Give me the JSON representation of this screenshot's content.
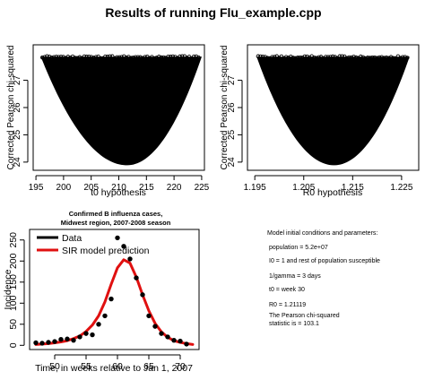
{
  "title": "Results of running Flu_example.cpp",
  "chart_data": [
    {
      "type": "scatter",
      "xlabel": "t0 hypothesis",
      "ylabel": "Corrected Pearson chi-squared",
      "xlim": [
        194.5,
        225.5
      ],
      "ylim": [
        23.7,
        28.3
      ],
      "xticks": [
        195,
        200,
        205,
        210,
        215,
        220,
        225
      ],
      "yticks": [
        24,
        25,
        26,
        27
      ],
      "shape": "parabola",
      "vertex": {
        "x": 211.5,
        "y": 23.9
      },
      "top_y": 27.85,
      "x_at_top": [
        196.0,
        224.9
      ],
      "color": "#000000"
    },
    {
      "type": "scatter",
      "xlabel": "R0 hypothesis",
      "ylabel": "Corrected Pearson chi-squared",
      "xlim": [
        1.1935,
        1.2285
      ],
      "ylim": [
        23.7,
        28.3
      ],
      "xticks": [
        1.195,
        1.205,
        1.215,
        1.225
      ],
      "xtick_labels": [
        "1.195",
        "1.205",
        "1.215",
        "1.225"
      ],
      "yticks": [
        24,
        25,
        26,
        27
      ],
      "shape": "parabola",
      "vertex": {
        "x": 1.2112,
        "y": 23.9
      },
      "top_y": 27.85,
      "x_at_top": [
        1.1955,
        1.2265
      ],
      "color": "#000000"
    },
    {
      "type": "line",
      "title": "Confirmed B influenza cases,\nMidwest region, 2007-2008 season",
      "title_lines": [
        "Confirmed B influenza cases,",
        "Midwest region, 2007-2008 season"
      ],
      "xlabel": "Time, in weeks relative to Jan 1, 2007",
      "ylabel": "Incidence",
      "xlim": [
        46,
        73
      ],
      "ylim": [
        -10,
        275
      ],
      "xticks": [
        50,
        55,
        60,
        65,
        70
      ],
      "yticks": [
        0,
        50,
        100,
        150,
        200,
        250
      ],
      "legend": {
        "placement": "top-left",
        "entries": [
          "Data",
          "SIR model prediction"
        ]
      },
      "series": [
        {
          "name": "Data",
          "style": "points",
          "color": "#000000",
          "x": [
            47,
            48,
            49,
            50,
            51,
            52,
            53,
            54,
            55,
            56,
            57,
            58,
            59,
            60,
            61,
            62,
            63,
            64,
            65,
            66,
            67,
            68,
            69,
            70,
            71
          ],
          "y": [
            6,
            5,
            7,
            9,
            14,
            15,
            12,
            20,
            28,
            25,
            50,
            70,
            110,
            255,
            235,
            205,
            160,
            120,
            70,
            45,
            28,
            20,
            12,
            10,
            3
          ]
        },
        {
          "name": "SIR model prediction",
          "style": "line",
          "color": "#e01010",
          "x": [
            47,
            48,
            49,
            50,
            51,
            52,
            53,
            54,
            55,
            56,
            57,
            58,
            59,
            60,
            61,
            62,
            63,
            64,
            65,
            66,
            67,
            68,
            69,
            70,
            71,
            72
          ],
          "y": [
            2,
            3,
            4,
            6,
            8,
            11,
            16,
            22,
            33,
            48,
            70,
            103,
            145,
            184,
            203,
            195,
            162,
            120,
            82,
            52,
            32,
            19,
            11,
            7,
            4,
            2
          ]
        }
      ]
    }
  ],
  "params": {
    "heading": "Model initial conditions and parameters:",
    "population": "population = 5.2e+07",
    "i0": "I0 = 1 and rest of population susceptible",
    "gamma": "1/gamma  = 3 days",
    "t0": "t0  = week 30",
    "r0": "R0 = 1.21119",
    "pearson1": "The Pearson chi-squared",
    "pearson2": "statistic is = 103.1"
  }
}
